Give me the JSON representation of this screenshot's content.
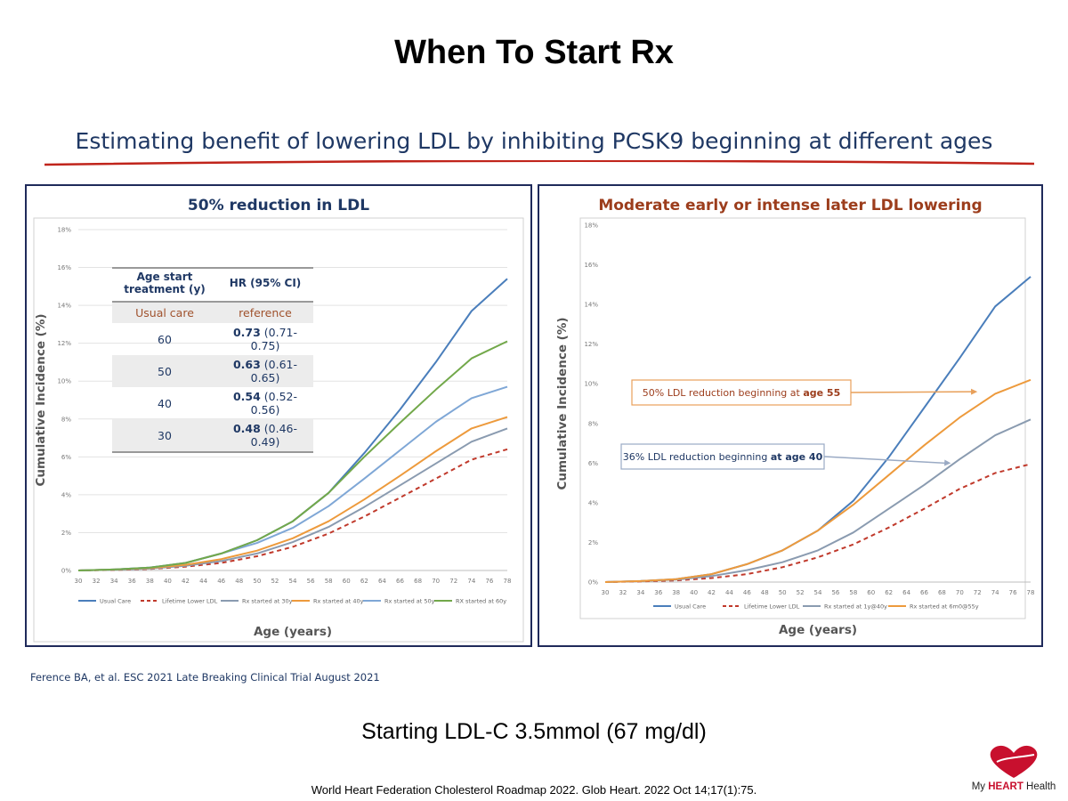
{
  "slide": {
    "title": "When To Start Rx",
    "subtitle": "Estimating benefit of lowering LDL by inhibiting PCSK9 beginning at different ages",
    "citation_ference": "Ference BA, et al. ESC 2021 Late Breaking Clinical Trial August 2021",
    "starting_ldl": "Starting LDL-C 3.5mmol (67 mg/dl)",
    "footer_reference": "World Heart Federation Cholesterol Roadmap 2022. Glob Heart. 2022 Oct 14;17(1):75.",
    "logo": {
      "text_pre": "My ",
      "text_brand": "HEART",
      "text_post": " Health",
      "icon": "heart-icon",
      "color": "#c8102e"
    }
  },
  "table": {
    "headers": [
      "Age start treatment (y)",
      "HR (95% CI)"
    ],
    "rows": [
      {
        "age": "Usual care",
        "hr_bold": "",
        "hr_ci": "reference"
      },
      {
        "age": "60",
        "hr_bold": "0.73",
        "hr_ci": " (0.71-0.75)"
      },
      {
        "age": "50",
        "hr_bold": "0.63",
        "hr_ci": " (0.61-0.65)"
      },
      {
        "age": "40",
        "hr_bold": "0.54",
        "hr_ci": " (0.52-0.56)"
      },
      {
        "age": "30",
        "hr_bold": "0.48",
        "hr_ci": " (0.46-0.49)"
      }
    ]
  },
  "chart_data": [
    {
      "type": "line",
      "title": "50% reduction in LDL",
      "xlabel": "Age (years)",
      "ylabel": "Cumulative Incidence (%)",
      "xlim": [
        30,
        78
      ],
      "ylim": [
        0,
        18
      ],
      "x_ticks": [
        30,
        32,
        34,
        36,
        38,
        40,
        42,
        44,
        46,
        48,
        50,
        52,
        54,
        56,
        58,
        60,
        62,
        64,
        66,
        68,
        70,
        72,
        74,
        76,
        78
      ],
      "y_ticks": [
        0,
        2,
        4,
        6,
        8,
        10,
        12,
        14,
        16,
        18
      ],
      "y_tick_suffix": "%",
      "grid": "horizontal",
      "legend": "bottom",
      "x": [
        30,
        34,
        38,
        42,
        46,
        50,
        54,
        58,
        62,
        66,
        70,
        74,
        78
      ],
      "series": [
        {
          "name": "Usual Care",
          "color": "#4a7ebb",
          "dashed": false,
          "values": [
            0,
            0.05,
            0.15,
            0.4,
            0.9,
            1.6,
            2.6,
            4.1,
            6.2,
            8.5,
            11.0,
            13.7,
            15.4
          ]
        },
        {
          "name": "Lifetime Lower LDL",
          "color": "#c0392b",
          "dashed": true,
          "values": [
            0,
            0.03,
            0.08,
            0.2,
            0.4,
            0.75,
            1.25,
            1.95,
            2.85,
            3.85,
            4.85,
            5.85,
            6.4
          ]
        },
        {
          "name": "Rx started at 30y",
          "color": "#8a9bb0",
          "dashed": false,
          "values": [
            0,
            0.04,
            0.1,
            0.25,
            0.5,
            0.9,
            1.5,
            2.3,
            3.35,
            4.5,
            5.65,
            6.8,
            7.5
          ]
        },
        {
          "name": "Rx started at 40y",
          "color": "#ed9a3c",
          "dashed": false,
          "values": [
            0,
            0.05,
            0.13,
            0.3,
            0.6,
            1.05,
            1.7,
            2.6,
            3.75,
            5.0,
            6.3,
            7.5,
            8.1
          ]
        },
        {
          "name": "Rx started at 50y",
          "color": "#7fa7d6",
          "dashed": false,
          "values": [
            0,
            0.05,
            0.15,
            0.4,
            0.9,
            1.45,
            2.25,
            3.4,
            4.85,
            6.35,
            7.85,
            9.1,
            9.7
          ]
        },
        {
          "name": "RX started at 60y",
          "color": "#72a84a",
          "dashed": false,
          "values": [
            0,
            0.05,
            0.15,
            0.4,
            0.9,
            1.6,
            2.6,
            4.1,
            6.0,
            7.8,
            9.55,
            11.2,
            12.1
          ]
        }
      ]
    },
    {
      "type": "line",
      "title": "Moderate early or intense later LDL lowering",
      "xlabel": "Age (years)",
      "ylabel": "Cumulative Incidence (%)",
      "xlim": [
        30,
        78
      ],
      "ylim": [
        0,
        18
      ],
      "x_ticks": [
        30,
        32,
        34,
        36,
        38,
        40,
        42,
        44,
        46,
        48,
        50,
        52,
        54,
        56,
        58,
        60,
        62,
        64,
        66,
        68,
        70,
        72,
        74,
        76,
        78
      ],
      "y_ticks": [
        0,
        2,
        4,
        6,
        8,
        10,
        12,
        14,
        16,
        18
      ],
      "y_tick_suffix": "%",
      "grid": "none",
      "legend": "bottom",
      "x": [
        30,
        34,
        38,
        42,
        46,
        50,
        54,
        58,
        62,
        66,
        70,
        74,
        78
      ],
      "series": [
        {
          "name": "Usual Care",
          "color": "#4a7ebb",
          "dashed": false,
          "values": [
            0,
            0.05,
            0.15,
            0.4,
            0.9,
            1.6,
            2.6,
            4.1,
            6.3,
            8.8,
            11.3,
            13.9,
            15.4
          ]
        },
        {
          "name": "Lifetime Lower LDL",
          "color": "#c0392b",
          "dashed": true,
          "values": [
            0,
            0.03,
            0.08,
            0.2,
            0.4,
            0.75,
            1.25,
            1.9,
            2.75,
            3.7,
            4.7,
            5.5,
            5.95
          ]
        },
        {
          "name": "Rx started at 1y@40y",
          "color": "#8a9bb0",
          "dashed": false,
          "values": [
            0,
            0.05,
            0.12,
            0.3,
            0.6,
            1.0,
            1.6,
            2.5,
            3.7,
            4.9,
            6.2,
            7.4,
            8.2
          ]
        },
        {
          "name": "Rx started at 6m0@55y",
          "color": "#ed9a3c",
          "dashed": false,
          "values": [
            0,
            0.05,
            0.15,
            0.4,
            0.9,
            1.6,
            2.6,
            3.9,
            5.4,
            6.9,
            8.3,
            9.5,
            10.2
          ]
        }
      ],
      "annotations": [
        {
          "text_pre": "50% LDL reduction beginning at ",
          "text_bold": "age 55",
          "border_color": "#e8a05a",
          "bold_color": "#9c3d1c",
          "text_color": "#9c3d1c",
          "arrow_to_x": 72,
          "arrow_to_y": 9.6
        },
        {
          "text_pre": "36% LDL reduction beginning ",
          "text_bold": "at age 40",
          "border_color": "#9aaac4",
          "bold_color": "#1f3864",
          "text_color": "#1f3864",
          "arrow_to_x": 69,
          "arrow_to_y": 6.0
        }
      ]
    }
  ]
}
